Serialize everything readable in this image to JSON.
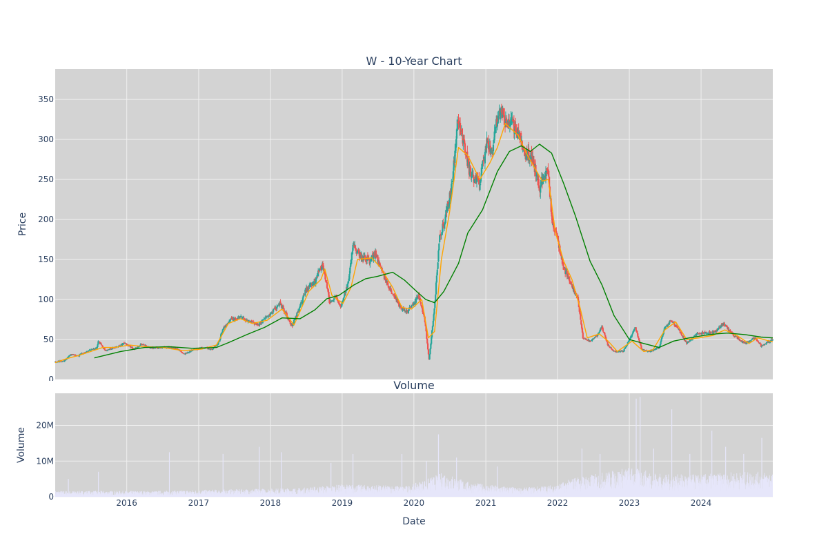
{
  "chart_data": [
    {
      "type": "candlestick",
      "title": "W - 10-Year Chart",
      "xlabel": "",
      "ylabel": "Price",
      "ylim": [
        0,
        388
      ],
      "xlim": [
        "2015-01-02",
        "2024-12-31"
      ],
      "y_ticks": [
        0,
        50,
        100,
        150,
        200,
        250,
        300,
        350
      ],
      "x_gridlines": [
        "2016-01-01",
        "2017-01-01",
        "2018-01-01",
        "2019-01-01",
        "2020-01-01",
        "2021-01-01",
        "2022-01-01",
        "2023-01-01",
        "2024-01-01"
      ],
      "grid": true,
      "price_path": [
        [
          "2015-01-02",
          22
        ],
        [
          "2015-02-15",
          23
        ],
        [
          "2015-03-20",
          31
        ],
        [
          "2015-05-01",
          30
        ],
        [
          "2015-06-20",
          36
        ],
        [
          "2015-08-01",
          39
        ],
        [
          "2015-08-10",
          48
        ],
        [
          "2015-09-15",
          36
        ],
        [
          "2015-11-01",
          40
        ],
        [
          "2015-12-20",
          45
        ],
        [
          "2016-02-10",
          38
        ],
        [
          "2016-03-15",
          44
        ],
        [
          "2016-05-01",
          39
        ],
        [
          "2016-06-15",
          40
        ],
        [
          "2016-08-01",
          40
        ],
        [
          "2016-09-15",
          38
        ],
        [
          "2016-10-20",
          32
        ],
        [
          "2016-12-01",
          37
        ],
        [
          "2017-02-01",
          40
        ],
        [
          "2017-03-10",
          38
        ],
        [
          "2017-04-10",
          45
        ],
        [
          "2017-05-05",
          63
        ],
        [
          "2017-06-15",
          75
        ],
        [
          "2017-08-01",
          78
        ],
        [
          "2017-09-15",
          72
        ],
        [
          "2017-11-01",
          68
        ],
        [
          "2017-12-20",
          80
        ],
        [
          "2018-02-20",
          95
        ],
        [
          "2018-03-20",
          82
        ],
        [
          "2018-04-20",
          67
        ],
        [
          "2018-05-20",
          84
        ],
        [
          "2018-07-01",
          112
        ],
        [
          "2018-08-15",
          122
        ],
        [
          "2018-09-20",
          145
        ],
        [
          "2018-10-10",
          125
        ],
        [
          "2018-10-30",
          95
        ],
        [
          "2018-12-01",
          105
        ],
        [
          "2018-12-25",
          90
        ],
        [
          "2019-02-01",
          120
        ],
        [
          "2019-02-25",
          168
        ],
        [
          "2019-04-01",
          155
        ],
        [
          "2019-05-20",
          148
        ],
        [
          "2019-06-20",
          158
        ],
        [
          "2019-07-30",
          130
        ],
        [
          "2019-09-10",
          110
        ],
        [
          "2019-10-30",
          88
        ],
        [
          "2019-12-01",
          85
        ],
        [
          "2020-01-25",
          105
        ],
        [
          "2020-02-25",
          75
        ],
        [
          "2020-03-18",
          25
        ],
        [
          "2020-04-15",
          90
        ],
        [
          "2020-05-10",
          178
        ],
        [
          "2020-06-10",
          205
        ],
        [
          "2020-07-15",
          245
        ],
        [
          "2020-08-10",
          330
        ],
        [
          "2020-09-01",
          305
        ],
        [
          "2020-10-15",
          255
        ],
        [
          "2020-12-01",
          245
        ],
        [
          "2021-01-05",
          295
        ],
        [
          "2021-02-01",
          285
        ],
        [
          "2021-03-10",
          340
        ],
        [
          "2021-04-15",
          320
        ],
        [
          "2021-05-15",
          320
        ],
        [
          "2021-06-15",
          310
        ],
        [
          "2021-07-25",
          280
        ],
        [
          "2021-08-25",
          280
        ],
        [
          "2021-10-01",
          238
        ],
        [
          "2021-11-10",
          265
        ],
        [
          "2021-12-05",
          200
        ],
        [
          "2022-01-05",
          170
        ],
        [
          "2022-02-01",
          140
        ],
        [
          "2022-03-10",
          120
        ],
        [
          "2022-04-15",
          100
        ],
        [
          "2022-05-10",
          52
        ],
        [
          "2022-06-15",
          48
        ],
        [
          "2022-07-20",
          55
        ],
        [
          "2022-08-15",
          65
        ],
        [
          "2022-09-15",
          42
        ],
        [
          "2022-10-15",
          35
        ],
        [
          "2022-12-01",
          35
        ],
        [
          "2023-02-01",
          65
        ],
        [
          "2023-03-05",
          38
        ],
        [
          "2023-04-15",
          35
        ],
        [
          "2023-06-01",
          40
        ],
        [
          "2023-07-01",
          65
        ],
        [
          "2023-08-01",
          75
        ],
        [
          "2023-09-01",
          65
        ],
        [
          "2023-10-20",
          45
        ],
        [
          "2023-12-15",
          58
        ],
        [
          "2024-02-01",
          58
        ],
        [
          "2024-03-15",
          60
        ],
        [
          "2024-04-20",
          70
        ],
        [
          "2024-06-15",
          55
        ],
        [
          "2024-08-15",
          45
        ],
        [
          "2024-10-01",
          52
        ],
        [
          "2024-11-01",
          42
        ],
        [
          "2024-12-31",
          50
        ]
      ],
      "series": [
        {
          "kind": "moving_average",
          "color": "#ffa500",
          "points": [
            [
              "2015-01-02",
              21
            ],
            [
              "2015-03-01",
              26
            ],
            [
              "2015-05-01",
              30
            ],
            [
              "2015-07-01",
              35
            ],
            [
              "2015-09-01",
              40
            ],
            [
              "2015-11-01",
              40
            ],
            [
              "2016-01-15",
              43
            ],
            [
              "2016-04-01",
              41
            ],
            [
              "2016-07-01",
              40
            ],
            [
              "2016-10-15",
              36
            ],
            [
              "2017-01-15",
              38
            ],
            [
              "2017-04-01",
              43
            ],
            [
              "2017-06-01",
              70
            ],
            [
              "2017-08-01",
              76
            ],
            [
              "2017-10-01",
              70
            ],
            [
              "2017-12-15",
              74
            ],
            [
              "2018-03-01",
              88
            ],
            [
              "2018-05-01",
              68
            ],
            [
              "2018-07-15",
              110
            ],
            [
              "2018-09-15",
              125
            ],
            [
              "2018-10-05",
              138
            ],
            [
              "2018-11-10",
              105
            ],
            [
              "2019-01-05",
              95
            ],
            [
              "2019-02-15",
              115
            ],
            [
              "2019-03-20",
              150
            ],
            [
              "2019-06-01",
              152
            ],
            [
              "2019-07-15",
              140
            ],
            [
              "2019-09-15",
              115
            ],
            [
              "2019-11-01",
              90
            ],
            [
              "2019-12-20",
              88
            ],
            [
              "2020-02-10",
              100
            ],
            [
              "2020-03-15",
              52
            ],
            [
              "2020-04-15",
              60
            ],
            [
              "2020-05-20",
              150
            ],
            [
              "2020-07-01",
              210
            ],
            [
              "2020-08-15",
              290
            ],
            [
              "2020-10-01",
              280
            ],
            [
              "2020-12-01",
              250
            ],
            [
              "2021-01-20",
              270
            ],
            [
              "2021-03-01",
              290
            ],
            [
              "2021-04-10",
              320
            ],
            [
              "2021-06-15",
              305
            ],
            [
              "2021-08-01",
              280
            ],
            [
              "2021-10-15",
              248
            ],
            [
              "2021-11-15",
              250
            ],
            [
              "2021-12-20",
              185
            ],
            [
              "2022-02-01",
              148
            ],
            [
              "2022-03-15",
              125
            ],
            [
              "2022-04-25",
              90
            ],
            [
              "2022-06-01",
              52
            ],
            [
              "2022-08-01",
              57
            ],
            [
              "2022-09-15",
              48
            ],
            [
              "2022-11-01",
              35
            ],
            [
              "2023-01-15",
              48
            ],
            [
              "2023-03-15",
              35
            ],
            [
              "2023-05-01",
              37
            ],
            [
              "2023-07-01",
              62
            ],
            [
              "2023-08-25",
              72
            ],
            [
              "2023-10-20",
              50
            ],
            [
              "2023-12-20",
              52
            ],
            [
              "2024-03-01",
              55
            ],
            [
              "2024-05-01",
              62
            ],
            [
              "2024-07-01",
              55
            ],
            [
              "2024-09-01",
              45
            ],
            [
              "2024-10-15",
              52
            ],
            [
              "2024-12-31",
              47
            ]
          ]
        },
        {
          "kind": "moving_average",
          "color": "#008000",
          "points": [
            [
              "2015-07-20",
              27
            ],
            [
              "2015-12-01",
              35
            ],
            [
              "2016-04-01",
              40
            ],
            [
              "2016-08-01",
              41
            ],
            [
              "2016-12-01",
              39
            ],
            [
              "2017-04-01",
              40
            ],
            [
              "2017-06-01",
              46
            ],
            [
              "2017-09-01",
              56
            ],
            [
              "2017-12-01",
              65
            ],
            [
              "2018-03-01",
              77
            ],
            [
              "2018-06-01",
              76
            ],
            [
              "2018-08-15",
              87
            ],
            [
              "2018-10-15",
              101
            ],
            [
              "2018-12-15",
              105
            ],
            [
              "2019-03-01",
              118
            ],
            [
              "2019-05-01",
              126
            ],
            [
              "2019-07-01",
              129
            ],
            [
              "2019-09-15",
              134
            ],
            [
              "2019-11-15",
              124
            ],
            [
              "2020-01-15",
              110
            ],
            [
              "2020-03-01",
              100
            ],
            [
              "2020-04-15",
              96
            ],
            [
              "2020-06-01",
              110
            ],
            [
              "2020-08-15",
              145
            ],
            [
              "2020-10-01",
              183
            ],
            [
              "2020-12-15",
              212
            ],
            [
              "2021-03-01",
              260
            ],
            [
              "2021-05-01",
              285
            ],
            [
              "2021-07-01",
              292
            ],
            [
              "2021-08-15",
              285
            ],
            [
              "2021-10-01",
              294
            ],
            [
              "2021-12-01",
              283
            ],
            [
              "2022-02-01",
              245
            ],
            [
              "2022-04-01",
              205
            ],
            [
              "2022-06-15",
              148
            ],
            [
              "2022-08-15",
              118
            ],
            [
              "2022-10-15",
              80
            ],
            [
              "2023-01-01",
              50
            ],
            [
              "2023-03-15",
              45
            ],
            [
              "2023-06-01",
              40
            ],
            [
              "2023-08-15",
              48
            ],
            [
              "2023-11-01",
              52
            ],
            [
              "2024-01-15",
              55
            ],
            [
              "2024-03-15",
              57
            ],
            [
              "2024-05-15",
              58
            ],
            [
              "2024-08-15",
              56
            ],
            [
              "2024-11-01",
              53
            ],
            [
              "2024-12-31",
              52
            ]
          ]
        }
      ],
      "colors": {
        "up": "#26a69a",
        "down": "#ef5350",
        "plot_bg": "#d3d3d3",
        "grid": "#f0f0f0"
      }
    },
    {
      "type": "bar",
      "title": "Volume",
      "xlabel": "Date",
      "ylabel": "Volume",
      "ylim": [
        0,
        29000000
      ],
      "y_ticks": [
        {
          "value": 0,
          "label": "0"
        },
        {
          "value": 10000000,
          "label": "10M"
        },
        {
          "value": 20000000,
          "label": "20M"
        }
      ],
      "x_ticks": [
        {
          "value": "2016-01-01",
          "label": "2016"
        },
        {
          "value": "2017-01-01",
          "label": "2017"
        },
        {
          "value": "2018-01-01",
          "label": "2018"
        },
        {
          "value": "2019-01-01",
          "label": "2019"
        },
        {
          "value": "2020-01-01",
          "label": "2020"
        },
        {
          "value": "2021-01-01",
          "label": "2021"
        },
        {
          "value": "2022-01-01",
          "label": "2022"
        },
        {
          "value": "2023-01-01",
          "label": "2023"
        },
        {
          "value": "2024-01-01",
          "label": "2024"
        }
      ],
      "bar_color": "#e6e6fa",
      "volume_baseline": [
        [
          "2015-01-02",
          1200000
        ],
        [
          "2016-06-01",
          1200000
        ],
        [
          "2017-06-01",
          1500000
        ],
        [
          "2018-06-01",
          1800000
        ],
        [
          "2019-01-01",
          2500000
        ],
        [
          "2019-12-01",
          2200000
        ],
        [
          "2020-03-01",
          3500000
        ],
        [
          "2020-06-01",
          5000000
        ],
        [
          "2020-10-01",
          3000000
        ],
        [
          "2021-01-01",
          2500000
        ],
        [
          "2021-07-01",
          1800000
        ],
        [
          "2022-01-01",
          2500000
        ],
        [
          "2022-04-01",
          4000000
        ],
        [
          "2022-07-01",
          4500000
        ],
        [
          "2023-01-01",
          6000000
        ],
        [
          "2023-07-01",
          4500000
        ],
        [
          "2024-01-01",
          4500000
        ],
        [
          "2024-07-01",
          5000000
        ],
        [
          "2024-12-31",
          5000000
        ]
      ],
      "volume_spikes": [
        [
          "2015-03-10",
          5000000
        ],
        [
          "2015-08-10",
          7000000
        ],
        [
          "2016-08-05",
          12500000
        ],
        [
          "2017-05-05",
          12000000
        ],
        [
          "2017-11-05",
          14000000
        ],
        [
          "2018-02-25",
          12500000
        ],
        [
          "2018-11-05",
          9500000
        ],
        [
          "2019-02-25",
          12000000
        ],
        [
          "2019-11-01",
          12000000
        ],
        [
          "2020-03-05",
          10000000
        ],
        [
          "2020-05-05",
          17500000
        ],
        [
          "2020-08-05",
          11000000
        ],
        [
          "2021-03-01",
          8500000
        ],
        [
          "2022-05-05",
          13500000
        ],
        [
          "2022-08-05",
          12000000
        ],
        [
          "2023-02-05",
          27500000
        ],
        [
          "2023-02-25",
          28000000
        ],
        [
          "2023-05-05",
          13500000
        ],
        [
          "2023-08-05",
          24500000
        ],
        [
          "2023-11-05",
          12000000
        ],
        [
          "2024-02-25",
          18500000
        ],
        [
          "2024-05-05",
          14000000
        ],
        [
          "2024-08-05",
          12000000
        ],
        [
          "2024-11-05",
          16500000
        ]
      ],
      "grid": true,
      "colors": {
        "plot_bg": "#d3d3d3",
        "grid": "#f0f0f0"
      }
    }
  ]
}
